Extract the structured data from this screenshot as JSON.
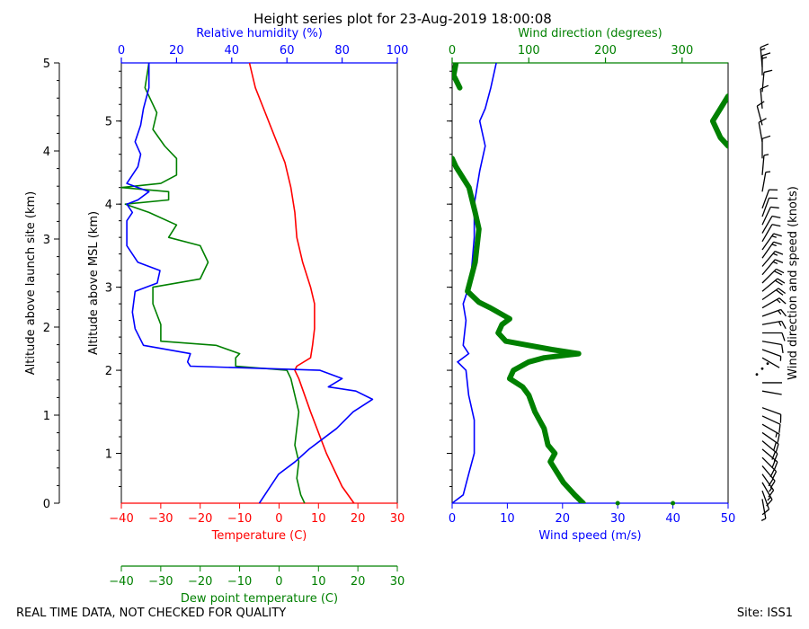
{
  "title": "Height series plot for 23-Aug-2019 18:00:08",
  "footer_left": "REAL TIME DATA, NOT CHECKED FOR QUALITY",
  "footer_right": "Site: ISS1",
  "colors": {
    "temperature": "#ff0000",
    "dewpoint": "#008000",
    "rh": "#0000ff",
    "wind_speed": "#0000ff",
    "wind_dir": "#008000",
    "barbs": "#000000"
  },
  "chart_data": [
    {
      "type": "line",
      "name": "thermo-panel",
      "left_axis": {
        "label": "Altitude above launch site (km)",
        "range": [
          0,
          5
        ],
        "ticks": [
          0,
          1,
          2,
          3,
          4,
          5
        ]
      },
      "y_axis": {
        "label": "Altitude above MSL (km)",
        "range": [
          1.4,
          6.7
        ],
        "ticks": [
          2,
          3,
          4,
          5,
          6
        ],
        "tick_labels": [
          "1",
          "2",
          "3",
          "4",
          "5"
        ]
      },
      "x_axis_bottom": {
        "label": "Temperature (C)",
        "range": [
          -40,
          30
        ],
        "ticks": [
          -40,
          -30,
          -20,
          -10,
          0,
          10,
          20,
          30
        ]
      },
      "x_axis_dewpoint": {
        "label": "Dew point temperature (C)",
        "range": [
          -40,
          30
        ],
        "ticks": [
          -40,
          -30,
          -20,
          -10,
          0,
          10,
          20,
          30
        ]
      },
      "x_axis_top": {
        "label": "Relative humidity (%)",
        "range": [
          0,
          100
        ],
        "ticks": [
          0,
          20,
          40,
          60,
          80,
          100
        ]
      },
      "series": [
        {
          "name": "Temperature",
          "axis": "temperature",
          "points": [
            [
              19,
              1.4
            ],
            [
              16,
              1.6
            ],
            [
              12,
              2.0
            ],
            [
              8,
              2.5
            ],
            [
              5,
              2.9
            ],
            [
              4,
              3.0
            ],
            [
              4.5,
              3.05
            ],
            [
              8,
              3.15
            ],
            [
              8.5,
              3.3
            ],
            [
              9,
              3.5
            ],
            [
              9,
              3.8
            ],
            [
              8,
              4.0
            ],
            [
              6,
              4.3
            ],
            [
              4.5,
              4.6
            ],
            [
              4,
              4.9
            ],
            [
              3,
              5.2
            ],
            [
              1.5,
              5.5
            ],
            [
              -1,
              5.8
            ],
            [
              -3.5,
              6.1
            ],
            [
              -6,
              6.4
            ],
            [
              -7.5,
              6.7
            ]
          ]
        },
        {
          "name": "Dew point",
          "axis": "temperature",
          "points": [
            [
              6.5,
              1.4
            ],
            [
              5.5,
              1.5
            ],
            [
              4.5,
              1.7
            ],
            [
              5,
              1.9
            ],
            [
              4,
              2.1
            ],
            [
              4.5,
              2.3
            ],
            [
              5,
              2.5
            ],
            [
              4,
              2.7
            ],
            [
              3,
              2.9
            ],
            [
              2,
              3.0
            ],
            [
              -11,
              3.05
            ],
            [
              -11,
              3.15
            ],
            [
              -10,
              3.2
            ],
            [
              -16,
              3.3
            ],
            [
              -30,
              3.35
            ],
            [
              -30,
              3.55
            ],
            [
              -32,
              3.8
            ],
            [
              -32,
              4.0
            ],
            [
              -20,
              4.1
            ],
            [
              -18,
              4.3
            ],
            [
              -20,
              4.5
            ],
            [
              -28,
              4.6
            ],
            [
              -26,
              4.75
            ],
            [
              -33,
              4.9
            ],
            [
              -39,
              5.0
            ],
            [
              -28,
              5.05
            ],
            [
              -28,
              5.15
            ],
            [
              -40,
              5.2
            ],
            [
              -30,
              5.25
            ],
            [
              -26,
              5.35
            ],
            [
              -26,
              5.55
            ],
            [
              -29,
              5.7
            ],
            [
              -32,
              5.9
            ],
            [
              -31,
              6.1
            ],
            [
              -34,
              6.4
            ],
            [
              -33,
              6.7
            ]
          ]
        },
        {
          "name": "Relative humidity",
          "axis": "rh",
          "points": [
            [
              50,
              1.4
            ],
            [
              53,
              1.55
            ],
            [
              57,
              1.75
            ],
            [
              63,
              1.9
            ],
            [
              68,
              2.05
            ],
            [
              72,
              2.15
            ],
            [
              78,
              2.3
            ],
            [
              84,
              2.5
            ],
            [
              91,
              2.65
            ],
            [
              85,
              2.75
            ],
            [
              75,
              2.8
            ],
            [
              80,
              2.9
            ],
            [
              72,
              3.0
            ],
            [
              25,
              3.05
            ],
            [
              24,
              3.1
            ],
            [
              25,
              3.2
            ],
            [
              8,
              3.3
            ],
            [
              5,
              3.5
            ],
            [
              4,
              3.7
            ],
            [
              5,
              3.95
            ],
            [
              13,
              4.05
            ],
            [
              14,
              4.2
            ],
            [
              6,
              4.3
            ],
            [
              2,
              4.5
            ],
            [
              2,
              4.8
            ],
            [
              4,
              4.9
            ],
            [
              2,
              5.0
            ],
            [
              6,
              5.05
            ],
            [
              10,
              5.15
            ],
            [
              2,
              5.25
            ],
            [
              6,
              5.45
            ],
            [
              7,
              5.6
            ],
            [
              5,
              5.75
            ],
            [
              7,
              5.95
            ],
            [
              8,
              6.15
            ],
            [
              10,
              6.4
            ],
            [
              10,
              6.7
            ]
          ]
        }
      ]
    },
    {
      "type": "scatter",
      "name": "wind-panel",
      "y_range": [
        1.4,
        6.7
      ],
      "x_axis_bottom": {
        "label": "Wind speed (m/s)",
        "range": [
          0,
          50
        ],
        "ticks": [
          0,
          10,
          20,
          30,
          40,
          50
        ]
      },
      "x_axis_top": {
        "label": "Wind direction (degrees)",
        "range": [
          0,
          360
        ],
        "ticks": [
          0,
          100,
          200,
          300
        ]
      },
      "series": [
        {
          "name": "Wind speed",
          "axis": "speed",
          "points": [
            [
              0,
              1.4
            ],
            [
              2,
              1.5
            ],
            [
              3,
              1.75
            ],
            [
              4,
              2.0
            ],
            [
              4,
              2.4
            ],
            [
              3,
              2.7
            ],
            [
              2.5,
              3.0
            ],
            [
              1,
              3.1
            ],
            [
              3,
              3.2
            ],
            [
              2,
              3.3
            ],
            [
              2.5,
              3.6
            ],
            [
              2,
              3.8
            ],
            [
              3,
              4.0
            ],
            [
              3.5,
              4.2
            ],
            [
              4,
              4.6
            ],
            [
              4,
              5.0
            ],
            [
              5,
              5.4
            ],
            [
              6,
              5.7
            ],
            [
              5,
              6.0
            ],
            [
              6,
              6.15
            ],
            [
              7,
              6.4
            ],
            [
              8,
              6.7
            ]
          ]
        },
        {
          "name": "Wind direction",
          "axis": "direction",
          "points": [
            [
              171,
              1.4
            ],
            [
              160,
              1.5
            ],
            [
              145,
              1.65
            ],
            [
              128,
              1.9
            ],
            [
              134,
              2.0
            ],
            [
              125,
              2.1
            ],
            [
              120,
              2.3
            ],
            [
              108,
              2.5
            ],
            [
              100,
              2.7
            ],
            [
              92,
              2.8
            ],
            [
              75,
              2.9
            ],
            [
              80,
              3.0
            ],
            [
              100,
              3.1
            ],
            [
              120,
              3.15
            ],
            [
              165,
              3.2
            ],
            [
              130,
              3.25
            ],
            [
              70,
              3.35
            ],
            [
              60,
              3.45
            ],
            [
              65,
              3.55
            ],
            [
              75,
              3.62
            ],
            [
              50,
              3.75
            ],
            [
              35,
              3.82
            ],
            [
              20,
              3.95
            ],
            [
              30,
              4.3
            ],
            [
              35,
              4.7
            ],
            [
              30,
              4.9
            ],
            [
              22,
              5.2
            ],
            [
              5,
              5.45
            ],
            [
              0,
              5.55
            ],
            [
              360,
              5.7
            ],
            [
              350,
              5.8
            ],
            [
              340,
              6.0
            ],
            [
              350,
              6.15
            ],
            [
              360,
              6.3
            ],
            [
              10,
              6.4
            ],
            [
              2,
              6.55
            ],
            [
              5,
              6.7
            ]
          ]
        }
      ]
    },
    {
      "type": "barbs",
      "name": "wind-barbs",
      "label": "Wind direction and speed (knots)",
      "y_range": [
        1.4,
        6.7
      ],
      "barbs": [
        [
          1.45,
          170,
          8
        ],
        [
          1.55,
          160,
          14
        ],
        [
          1.65,
          150,
          16
        ],
        [
          1.75,
          145,
          18
        ],
        [
          1.85,
          140,
          22
        ],
        [
          1.95,
          135,
          24
        ],
        [
          2.05,
          130,
          24
        ],
        [
          2.15,
          130,
          22
        ],
        [
          2.25,
          125,
          20
        ],
        [
          2.35,
          120,
          18
        ],
        [
          2.45,
          115,
          14
        ],
        [
          2.55,
          110,
          10
        ],
        [
          2.75,
          100,
          4
        ],
        [
          2.85,
          90,
          2
        ],
        [
          3.15,
          120,
          4
        ],
        [
          3.25,
          110,
          8
        ],
        [
          3.35,
          100,
          12
        ],
        [
          3.45,
          90,
          14
        ],
        [
          3.55,
          80,
          16
        ],
        [
          3.65,
          70,
          18
        ],
        [
          3.75,
          60,
          18
        ],
        [
          3.85,
          55,
          20
        ],
        [
          3.95,
          50,
          20
        ],
        [
          4.05,
          45,
          20
        ],
        [
          4.15,
          40,
          18
        ],
        [
          4.25,
          40,
          18
        ],
        [
          4.35,
          35,
          16
        ],
        [
          4.45,
          35,
          16
        ],
        [
          4.55,
          30,
          14
        ],
        [
          4.65,
          30,
          12
        ],
        [
          4.75,
          25,
          10
        ],
        [
          4.85,
          20,
          10
        ],
        [
          4.95,
          20,
          10
        ],
        [
          5.15,
          10,
          8
        ],
        [
          5.35,
          5,
          8
        ],
        [
          5.55,
          0,
          10
        ],
        [
          5.75,
          350,
          10
        ],
        [
          5.95,
          345,
          12
        ],
        [
          6.15,
          355,
          12
        ],
        [
          6.35,
          5,
          14
        ],
        [
          6.55,
          0,
          16
        ],
        [
          6.65,
          355,
          16
        ]
      ]
    }
  ]
}
